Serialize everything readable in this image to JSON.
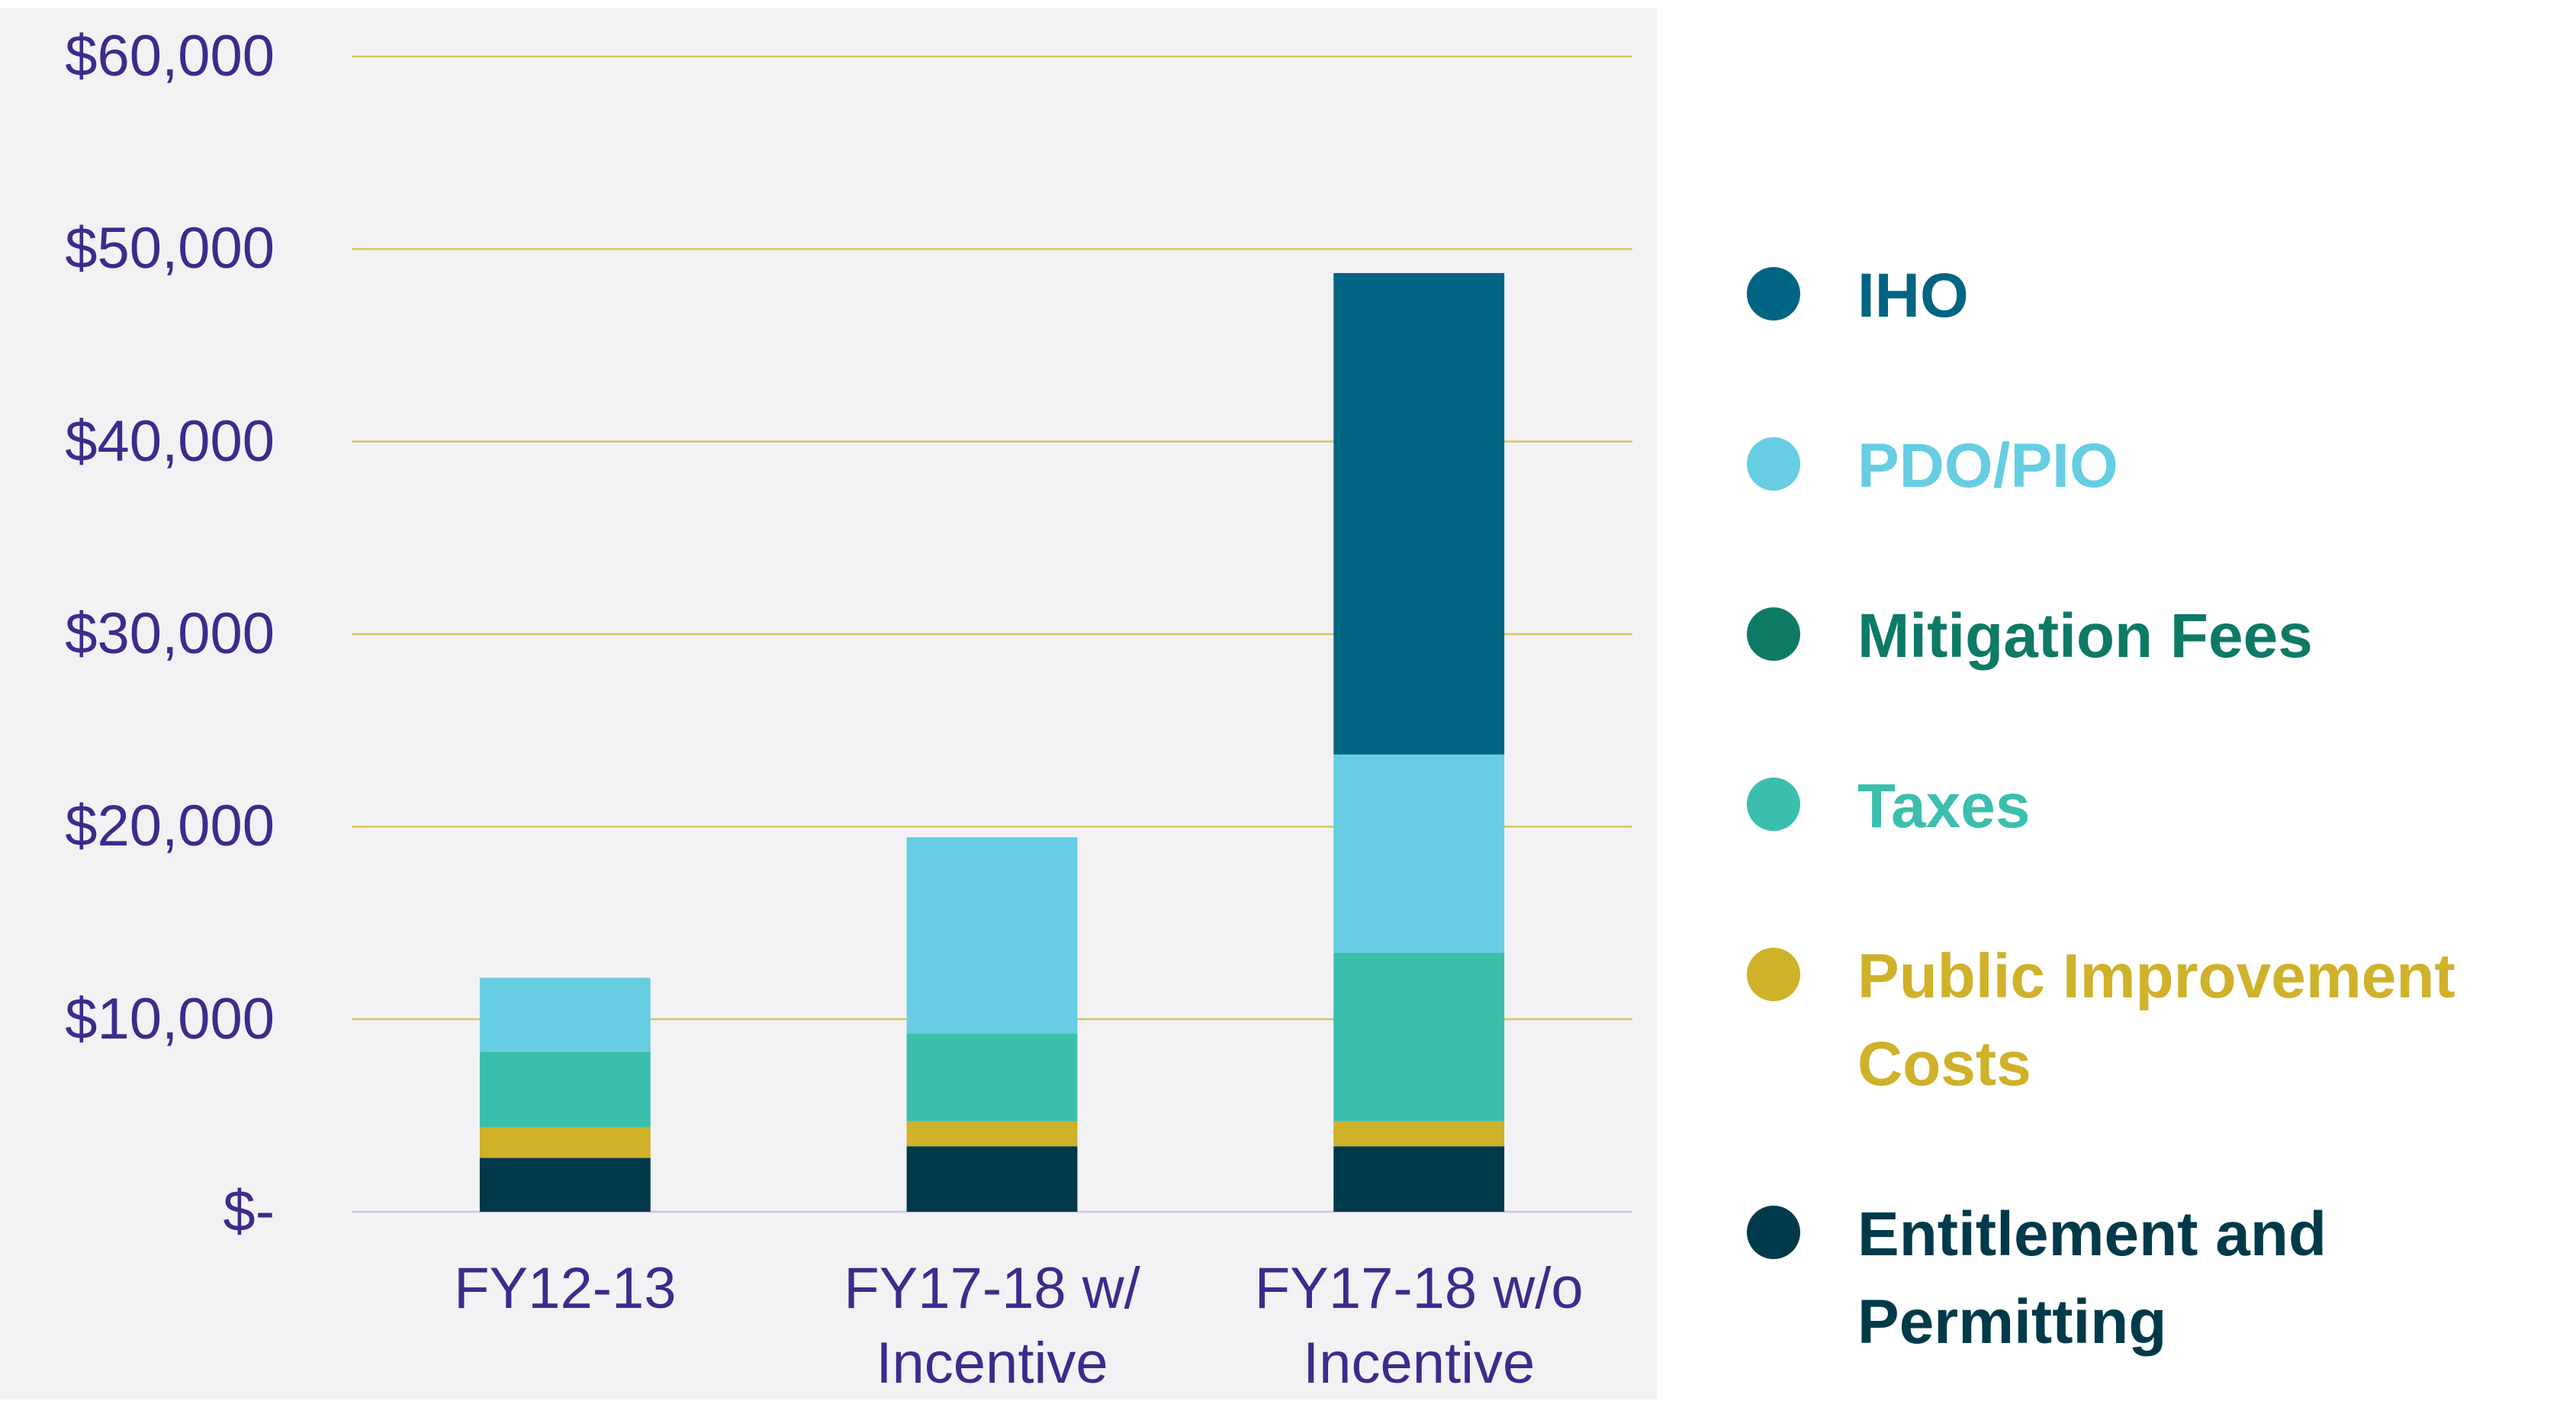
{
  "chart_data": {
    "type": "stacked_bar",
    "categories": [
      "FY12-13",
      "FY17-18 w/ Incentive",
      "FY17-18 w/o Incentive"
    ],
    "series": [
      {
        "name": "IHO",
        "color": "#006482",
        "values": [
          0,
          0,
          25000
        ]
      },
      {
        "name": "PDO/PIO",
        "color": "#66cde3",
        "values": [
          3850,
          10200,
          10300
        ]
      },
      {
        "name": "Mitigation Fees",
        "color": "#0d7a66",
        "values": [
          0,
          0,
          0
        ]
      },
      {
        "name": "Taxes",
        "color": "#3bbfad",
        "values": [
          3900,
          4550,
          8750
        ]
      },
      {
        "name": "Public Improvement Costs",
        "color": "#cfb12a",
        "values": [
          1600,
          1300,
          1300
        ]
      },
      {
        "name": "Entitlement and Permitting",
        "color": "#003a4a",
        "values": [
          2800,
          3400,
          3400
        ]
      }
    ],
    "ylim": [
      0,
      60000
    ],
    "yticks": [
      {
        "value": 0,
        "label": "$-"
      },
      {
        "value": 10000,
        "label": "$10,000"
      },
      {
        "value": 20000,
        "label": "$20,000"
      },
      {
        "value": 30000,
        "label": "$30,000"
      },
      {
        "value": 40000,
        "label": "$40,000"
      },
      {
        "value": 50000,
        "label": "$50,000"
      },
      {
        "value": 60000,
        "label": "$60,000"
      }
    ],
    "grid": true,
    "legend": "right"
  }
}
